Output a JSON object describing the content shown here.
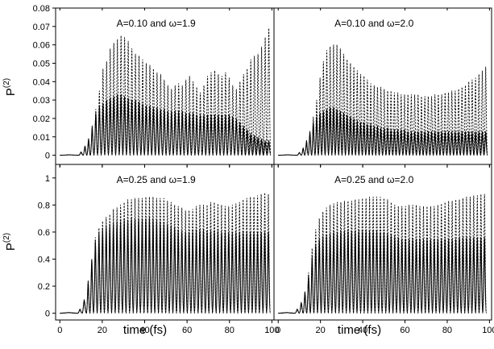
{
  "figure": {
    "xlabel": "time (fs)",
    "ylabel_base": "P",
    "ylabel_sup": "(2)"
  },
  "chart_data": [
    {
      "type": "line",
      "title": "A=0.10 and ω=1.9",
      "xlabel": "",
      "ylabel": "P(2)",
      "xlim": [
        -2,
        101
      ],
      "ylim": [
        -0.005,
        0.08
      ],
      "xticks": [
        "0",
        "20",
        "40",
        "60",
        "80",
        "100"
      ],
      "yticks": [
        "0",
        "0.01",
        "0.02",
        "0.03",
        "0.04",
        "0.05",
        "0.06",
        "0.07",
        "0.08"
      ],
      "series": [
        {
          "style": "dashed",
          "x": [
            0,
            9,
            11,
            12.7,
            14.4,
            16.1,
            17.8,
            19.5,
            21.2,
            22.9,
            24.6,
            26.3,
            28,
            29.7,
            31.4,
            33.1,
            34.8,
            36.5,
            38.2,
            39.9,
            41.6,
            43.3,
            45,
            46.7,
            48.4,
            50.1,
            51.8,
            53.5,
            55.2,
            56.9,
            58.6,
            60.3,
            62,
            63.7,
            65.4,
            67.1,
            68.8,
            70.5,
            72.2,
            73.9,
            75.6,
            77.3,
            79,
            80.7,
            82.4,
            84.1,
            85.8,
            87.5,
            89.2,
            90.9,
            92.6,
            94.3,
            96,
            97.7,
            99.4
          ],
          "y": [
            0,
            0.0002,
            0.0018,
            0.005,
            0.009,
            0.016,
            0.025,
            0.035,
            0.047,
            0.051,
            0.058,
            0.061,
            0.063,
            0.065,
            0.064,
            0.062,
            0.058,
            0.055,
            0.054,
            0.052,
            0.05,
            0.049,
            0.047,
            0.045,
            0.044,
            0.041,
            0.038,
            0.036,
            0.038,
            0.039,
            0.038,
            0.041,
            0.043,
            0.04,
            0.037,
            0.034,
            0.038,
            0.043,
            0.045,
            0.046,
            0.044,
            0.043,
            0.045,
            0.042,
            0.038,
            0.036,
            0.04,
            0.044,
            0.047,
            0.052,
            0.054,
            0.055,
            0.059,
            0.064,
            0.069
          ]
        },
        {
          "style": "solid",
          "x": [
            0,
            9,
            11,
            12.7,
            14.4,
            16.1,
            17.8,
            19.5,
            21.2,
            22.9,
            24.6,
            26.3,
            28,
            29.7,
            31.4,
            33.1,
            34.8,
            36.5,
            38.2,
            39.9,
            41.6,
            43.3,
            45,
            46.7,
            48.4,
            50.1,
            51.8,
            53.5,
            55.2,
            56.9,
            58.6,
            60.3,
            62,
            63.7,
            65.4,
            67.1,
            68.8,
            70.5,
            72.2,
            73.9,
            75.6,
            77.3,
            79,
            80.7,
            82.4,
            84.1,
            85.8,
            87.5,
            89.2,
            90.9,
            92.6,
            94.3,
            96,
            97.7,
            99.4
          ],
          "y": [
            0,
            0.0002,
            0.0018,
            0.005,
            0.009,
            0.016,
            0.023,
            0.027,
            0.028,
            0.03,
            0.031,
            0.032,
            0.033,
            0.033,
            0.032,
            0.031,
            0.03,
            0.03,
            0.029,
            0.028,
            0.027,
            0.027,
            0.026,
            0.026,
            0.025,
            0.025,
            0.024,
            0.024,
            0.024,
            0.024,
            0.024,
            0.023,
            0.023,
            0.023,
            0.022,
            0.022,
            0.022,
            0.022,
            0.022,
            0.022,
            0.022,
            0.022,
            0.022,
            0.022,
            0.021,
            0.02,
            0.018,
            0.016,
            0.014,
            0.012,
            0.011,
            0.01,
            0.009,
            0.008,
            0.008
          ]
        }
      ]
    },
    {
      "type": "line",
      "title": "A=0.10 and ω=2.0",
      "xlabel": "",
      "ylabel": "",
      "xlim": [
        -2,
        101
      ],
      "ylim": [
        -0.005,
        0.08
      ],
      "xticks": [
        "0",
        "20",
        "40",
        "60",
        "80",
        "100"
      ],
      "yticks": [],
      "series": [
        {
          "style": "dashed",
          "x": [
            0,
            9,
            11,
            12.6,
            14.2,
            15.8,
            17.4,
            19,
            20.6,
            22.2,
            23.8,
            25.4,
            27,
            28.6,
            30.2,
            31.8,
            33.4,
            35,
            36.6,
            38.2,
            39.8,
            41.4,
            43,
            44.6,
            46.2,
            47.8,
            49.4,
            51,
            52.6,
            54.2,
            55.8,
            57.4,
            59,
            60.6,
            62.2,
            63.8,
            65.4,
            67,
            68.6,
            70.2,
            71.8,
            73.4,
            75,
            76.6,
            78.2,
            79.8,
            81.4,
            83,
            84.6,
            86.2,
            87.8,
            89.4,
            91,
            92.6,
            94.2,
            95.8,
            97.4,
            99
          ],
          "y": [
            0,
            0.0002,
            0.0015,
            0.004,
            0.008,
            0.013,
            0.021,
            0.03,
            0.042,
            0.051,
            0.057,
            0.059,
            0.06,
            0.06,
            0.058,
            0.055,
            0.052,
            0.05,
            0.048,
            0.046,
            0.044,
            0.043,
            0.041,
            0.039,
            0.038,
            0.037,
            0.037,
            0.036,
            0.035,
            0.035,
            0.034,
            0.034,
            0.033,
            0.033,
            0.033,
            0.033,
            0.033,
            0.033,
            0.032,
            0.032,
            0.032,
            0.032,
            0.033,
            0.033,
            0.033,
            0.034,
            0.034,
            0.035,
            0.035,
            0.036,
            0.037,
            0.038,
            0.04,
            0.041,
            0.042,
            0.044,
            0.046,
            0.048
          ]
        },
        {
          "style": "solid",
          "x": [
            0,
            9,
            11,
            12.6,
            14.2,
            15.8,
            17.4,
            19,
            20.6,
            22.2,
            23.8,
            25.4,
            27,
            28.6,
            30.2,
            31.8,
            33.4,
            35,
            36.6,
            38.2,
            39.8,
            41.4,
            43,
            44.6,
            46.2,
            47.8,
            49.4,
            51,
            52.6,
            54.2,
            55.8,
            57.4,
            59,
            60.6,
            62.2,
            63.8,
            65.4,
            67,
            68.6,
            70.2,
            71.8,
            73.4,
            75,
            76.6,
            78.2,
            79.8,
            81.4,
            83,
            84.6,
            86.2,
            87.8,
            89.4,
            91,
            92.6,
            94.2,
            95.8,
            97.4,
            99
          ],
          "y": [
            0,
            0.0002,
            0.0015,
            0.004,
            0.008,
            0.013,
            0.018,
            0.021,
            0.023,
            0.024,
            0.025,
            0.026,
            0.026,
            0.025,
            0.024,
            0.023,
            0.022,
            0.021,
            0.02,
            0.019,
            0.018,
            0.018,
            0.017,
            0.017,
            0.016,
            0.016,
            0.015,
            0.015,
            0.015,
            0.014,
            0.014,
            0.014,
            0.014,
            0.014,
            0.013,
            0.013,
            0.013,
            0.013,
            0.013,
            0.013,
            0.013,
            0.013,
            0.013,
            0.013,
            0.013,
            0.013,
            0.013,
            0.013,
            0.013,
            0.013,
            0.013,
            0.013,
            0.013,
            0.013,
            0.013,
            0.013,
            0.013,
            0.013
          ]
        }
      ]
    },
    {
      "type": "line",
      "title": "A=0.25 and ω=1.9",
      "xlabel": "time (fs)",
      "ylabel": "P(2)",
      "xlim": [
        -2,
        101
      ],
      "ylim": [
        -0.05,
        1.1
      ],
      "xticks": [
        "0",
        "20",
        "40",
        "60",
        "80",
        "100"
      ],
      "yticks": [
        "0",
        "0.2",
        "0.4",
        "0.6",
        "0.8",
        "1"
      ],
      "series": [
        {
          "style": "dashed",
          "x": [
            0,
            8.5,
            10.5,
            12.5,
            14.2,
            15.9,
            17.6,
            19.3,
            21,
            22.7,
            24.4,
            26.1,
            27.8,
            29.5,
            31.2,
            32.9,
            34.6,
            36.3,
            38,
            39.7,
            41.4,
            43.1,
            44.8,
            46.5,
            48.2,
            49.9,
            51.6,
            53.3,
            55,
            56.7,
            58.4,
            60.1,
            61.8,
            63.5,
            65.2,
            66.9,
            68.6,
            70.3,
            72,
            73.7,
            75.4,
            77.1,
            78.8,
            80.5,
            82.2,
            83.9,
            85.6,
            87.3,
            89,
            90.7,
            92.4,
            94.1,
            95.8,
            97.5,
            99.2
          ],
          "y": [
            0,
            0.005,
            0.03,
            0.1,
            0.24,
            0.4,
            0.56,
            0.63,
            0.68,
            0.71,
            0.73,
            0.77,
            0.78,
            0.8,
            0.82,
            0.84,
            0.84,
            0.85,
            0.85,
            0.85,
            0.86,
            0.86,
            0.86,
            0.85,
            0.85,
            0.85,
            0.83,
            0.82,
            0.8,
            0.79,
            0.78,
            0.76,
            0.76,
            0.77,
            0.79,
            0.8,
            0.8,
            0.8,
            0.82,
            0.82,
            0.81,
            0.8,
            0.79,
            0.79,
            0.8,
            0.81,
            0.82,
            0.84,
            0.85,
            0.86,
            0.86,
            0.87,
            0.88,
            0.89,
            0.88
          ]
        },
        {
          "style": "solid",
          "x": [
            0,
            8.5,
            10.5,
            12.5,
            14.2,
            15.9,
            17.6,
            19.3,
            21,
            22.7,
            24.4,
            26.1,
            27.8,
            29.5,
            31.2,
            32.9,
            34.6,
            36.3,
            38,
            39.7,
            41.4,
            43.1,
            44.8,
            46.5,
            48.2,
            49.9,
            51.6,
            53.3,
            55,
            56.7,
            58.4,
            60.1,
            61.8,
            63.5,
            65.2,
            66.9,
            68.6,
            70.3,
            72,
            73.7,
            75.4,
            77.1,
            78.8,
            80.5,
            82.2,
            83.9,
            85.6,
            87.3,
            89,
            90.7,
            92.4,
            94.1,
            95.8,
            97.5,
            99.2
          ],
          "y": [
            0,
            0.005,
            0.03,
            0.1,
            0.24,
            0.4,
            0.54,
            0.6,
            0.63,
            0.65,
            0.66,
            0.67,
            0.68,
            0.68,
            0.69,
            0.69,
            0.7,
            0.7,
            0.7,
            0.7,
            0.7,
            0.71,
            0.7,
            0.69,
            0.68,
            0.67,
            0.66,
            0.65,
            0.64,
            0.62,
            0.61,
            0.6,
            0.6,
            0.61,
            0.62,
            0.62,
            0.62,
            0.61,
            0.61,
            0.61,
            0.61,
            0.6,
            0.6,
            0.6,
            0.6,
            0.6,
            0.6,
            0.6,
            0.6,
            0.6,
            0.6,
            0.6,
            0.6,
            0.6,
            0.6
          ]
        }
      ]
    },
    {
      "type": "line",
      "title": "A=0.25 and ω=2.0",
      "xlabel": "time (fs)",
      "ylabel": "",
      "xlim": [
        -2,
        101
      ],
      "ylim": [
        -0.05,
        1.1
      ],
      "xticks": [
        "0",
        "20",
        "40",
        "60",
        "80",
        "100"
      ],
      "yticks": [],
      "series": [
        {
          "style": "dashed",
          "x": [
            0,
            8,
            10,
            11.8,
            13.5,
            15.2,
            16.9,
            18.6,
            20.3,
            22,
            23.7,
            25.4,
            27.1,
            28.8,
            30.5,
            32.2,
            33.9,
            35.6,
            37.3,
            39,
            40.7,
            42.4,
            44.1,
            45.8,
            47.5,
            49.2,
            50.9,
            52.6,
            54.3,
            56,
            57.7,
            59.4,
            61.1,
            62.8,
            64.5,
            66.2,
            67.9,
            69.6,
            71.3,
            73,
            74.7,
            76.4,
            78.1,
            79.8,
            81.5,
            83.2,
            84.9,
            86.6,
            88.3,
            90,
            91.7,
            93.4,
            95.1,
            96.8,
            98.5
          ],
          "y": [
            0,
            0.005,
            0.03,
            0.08,
            0.16,
            0.3,
            0.48,
            0.62,
            0.7,
            0.75,
            0.78,
            0.8,
            0.81,
            0.82,
            0.82,
            0.83,
            0.83,
            0.83,
            0.84,
            0.84,
            0.85,
            0.85,
            0.86,
            0.86,
            0.86,
            0.86,
            0.85,
            0.84,
            0.82,
            0.8,
            0.79,
            0.79,
            0.79,
            0.8,
            0.8,
            0.8,
            0.79,
            0.79,
            0.79,
            0.79,
            0.79,
            0.8,
            0.81,
            0.82,
            0.83,
            0.83,
            0.84,
            0.84,
            0.85,
            0.86,
            0.86,
            0.87,
            0.87,
            0.88,
            0.88
          ]
        },
        {
          "style": "solid",
          "x": [
            0,
            8,
            10,
            11.8,
            13.5,
            15.2,
            16.9,
            18.6,
            20.3,
            22,
            23.7,
            25.4,
            27.1,
            28.8,
            30.5,
            32.2,
            33.9,
            35.6,
            37.3,
            39,
            40.7,
            42.4,
            44.1,
            45.8,
            47.5,
            49.2,
            50.9,
            52.6,
            54.3,
            56,
            57.7,
            59.4,
            61.1,
            62.8,
            64.5,
            66.2,
            67.9,
            69.6,
            71.3,
            73,
            74.7,
            76.4,
            78.1,
            79.8,
            81.5,
            83.2,
            84.9,
            86.6,
            88.3,
            90,
            91.7,
            93.4,
            95.1,
            96.8,
            98.5
          ],
          "y": [
            0,
            0.005,
            0.03,
            0.08,
            0.16,
            0.28,
            0.42,
            0.51,
            0.55,
            0.57,
            0.58,
            0.59,
            0.6,
            0.6,
            0.61,
            0.61,
            0.61,
            0.61,
            0.61,
            0.61,
            0.61,
            0.61,
            0.61,
            0.61,
            0.61,
            0.6,
            0.6,
            0.59,
            0.58,
            0.57,
            0.56,
            0.55,
            0.55,
            0.55,
            0.55,
            0.55,
            0.55,
            0.55,
            0.55,
            0.55,
            0.55,
            0.55,
            0.55,
            0.55,
            0.55,
            0.55,
            0.55,
            0.56,
            0.56,
            0.56,
            0.56,
            0.56,
            0.56,
            0.56,
            0.56
          ]
        }
      ]
    }
  ]
}
